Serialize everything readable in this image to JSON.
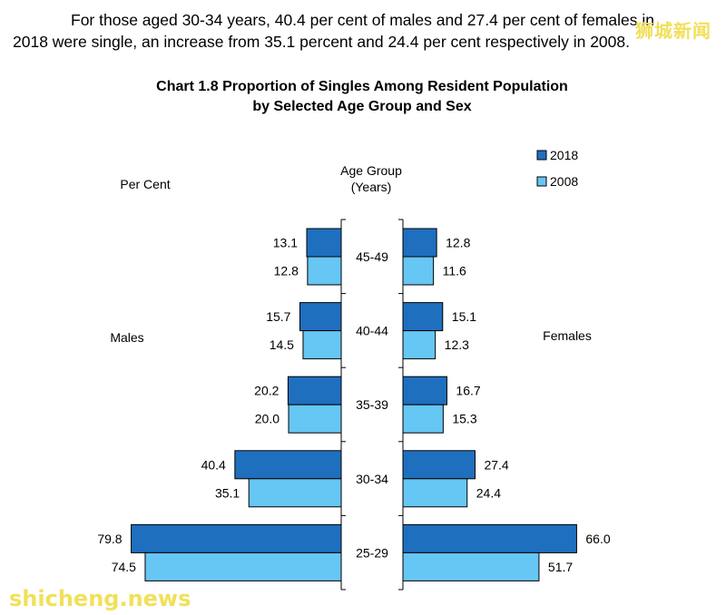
{
  "intro": {
    "line1": "For those aged 30-34 years, 40.4 per cent of males and 27.4 per cent of females in",
    "line2": "2018 were single, an increase from 35.1 percent and 24.4 per cent respectively in 2008."
  },
  "watermark": {
    "top_right": "狮城新闻",
    "bottom_left": "shicheng.news"
  },
  "colors": {
    "series_2018": "#1f6fbf",
    "series_2008": "#66c6f4"
  },
  "chart_data": {
    "type": "bar",
    "orientation": "horizontal-back-to-back",
    "title_line1": "Chart 1.8  Proportion of Singles Among Resident Population",
    "title_line2": "by Selected Age Group and Sex",
    "value_label": "Per Cent",
    "center_label_line1": "Age Group",
    "center_label_line2": "(Years)",
    "left_side_label": "Males",
    "right_side_label": "Females",
    "legend_position": "top-right",
    "categories": [
      "45-49",
      "40-44",
      "35-39",
      "30-34",
      "25-29"
    ],
    "series": [
      {
        "name": "2018",
        "males": [
          13.1,
          15.7,
          20.2,
          40.4,
          79.8
        ],
        "females": [
          12.8,
          15.1,
          16.7,
          27.4,
          66.0
        ]
      },
      {
        "name": "2008",
        "males": [
          12.8,
          14.5,
          20.0,
          35.1,
          74.5
        ],
        "females": [
          11.6,
          12.3,
          15.3,
          24.4,
          51.7
        ]
      }
    ]
  }
}
